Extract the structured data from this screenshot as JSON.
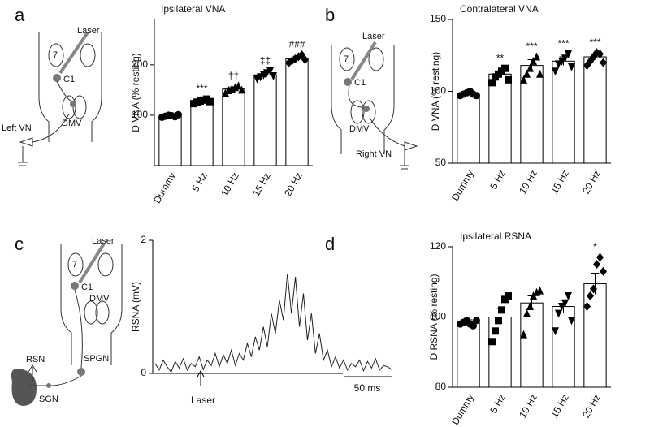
{
  "chart_data": [
    {
      "type": "bar",
      "panel_label": "a",
      "title": "Ipsilateral VNA",
      "ylabel": "D VNA (% resting)",
      "categories": [
        "Dummy",
        "5 Hz",
        "10 Hz",
        "15 Hz",
        "20 Hz"
      ],
      "values": [
        98,
        128,
        152,
        180,
        212
      ],
      "errors": [
        3,
        4,
        4,
        5,
        5
      ],
      "points": [
        [
          96,
          98,
          100,
          99,
          97,
          101
        ],
        [
          123,
          126,
          128,
          130,
          132,
          127
        ],
        [
          144,
          149,
          152,
          155,
          158,
          150
        ],
        [
          172,
          176,
          180,
          184,
          188,
          178
        ],
        [
          204,
          208,
          212,
          216,
          220,
          210
        ]
      ],
      "markers": [
        "circle",
        "square",
        "triangle-up",
        "triangle-down",
        "diamond"
      ],
      "significance": [
        null,
        "***",
        "††",
        "‡‡",
        "###"
      ],
      "ylim": [
        0,
        290
      ],
      "yticks": [
        100,
        200
      ],
      "diagram_labels": [
        "Laser",
        "7",
        "C1",
        "DMV",
        "Left VN"
      ]
    },
    {
      "type": "bar",
      "panel_label": "b",
      "title": "Contralateral VNA",
      "ylabel": "D VNA (% resting)",
      "categories": [
        "Dummy",
        "5 Hz",
        "10 Hz",
        "15 Hz",
        "20 Hz"
      ],
      "values": [
        98,
        112,
        118,
        121,
        124
      ],
      "errors": [
        1,
        2,
        4,
        3,
        2
      ],
      "points": [
        [
          97,
          98,
          99,
          100,
          98,
          97
        ],
        [
          106,
          110,
          112,
          114,
          116,
          108
        ],
        [
          108,
          112,
          116,
          121,
          124,
          112
        ],
        [
          114,
          119,
          121,
          123,
          126,
          117
        ],
        [
          118,
          121,
          124,
          127,
          126,
          120
        ]
      ],
      "markers": [
        "circle",
        "square",
        "triangle-up",
        "triangle-down",
        "diamond"
      ],
      "significance": [
        null,
        "**",
        "***",
        "***",
        "***"
      ],
      "ylim": [
        50,
        150
      ],
      "yticks": [
        50,
        100,
        150
      ],
      "diagram_labels": [
        "Laser",
        "7",
        "C1",
        "DMV",
        "Right VN"
      ]
    },
    {
      "type": "line",
      "panel_label": "c",
      "ylabel": "RSNA (mV)",
      "values": [
        0.15,
        0.05,
        0.2,
        0.1,
        0.02,
        0.18,
        0.08,
        0.22,
        0.05,
        0.15,
        0.1,
        0.25,
        0.06,
        0.2,
        0.12,
        0.3,
        0.1,
        0.28,
        0.15,
        0.35,
        0.12,
        0.3,
        0.2,
        0.45,
        0.25,
        0.55,
        0.35,
        0.7,
        0.4,
        0.9,
        0.6,
        1.1,
        0.8,
        1.5,
        0.9,
        1.45,
        0.7,
        1.2,
        0.5,
        0.9,
        0.3,
        0.6,
        0.2,
        0.35,
        0.1,
        0.25,
        0.08,
        0.2,
        0.05,
        0.15,
        0.1,
        0.2,
        0.04,
        0.18,
        0.08,
        0.22,
        0.05,
        0.12,
        0.1,
        0.06
      ],
      "ylim": [
        0,
        2
      ],
      "yticks": [
        0,
        2
      ],
      "scale_bar": "50 ms",
      "stimulus_label": "Laser",
      "diagram_labels": [
        "Laser",
        "7",
        "C1",
        "DMV",
        "SPGN",
        "SGN",
        "RSN"
      ]
    },
    {
      "type": "bar",
      "panel_label": "d",
      "title": "Ipsilateral RSNA",
      "ylabel": "D RSNA (% resting)",
      "categories": [
        "Dummy",
        "5 Hz",
        "10 Hz",
        "15 Hz",
        "20 Hz"
      ],
      "values": [
        98.5,
        100,
        104,
        103,
        109.5
      ],
      "errors": [
        0.7,
        2.5,
        2,
        1.8,
        3
      ],
      "points": [
        [
          98,
          98.5,
          99,
          98,
          97.5,
          99
        ],
        [
          93,
          96,
          99,
          102,
          105,
          106
        ],
        [
          95,
          101,
          103,
          106,
          107,
          107.5
        ],
        [
          96,
          101,
          103,
          104,
          106,
          99
        ],
        [
          103,
          106,
          108,
          115,
          117,
          113
        ]
      ],
      "markers": [
        "circle",
        "square",
        "triangle-up",
        "triangle-down",
        "diamond"
      ],
      "significance": [
        null,
        null,
        null,
        null,
        "*"
      ],
      "ylim": [
        80,
        120
      ],
      "yticks": [
        80,
        100,
        120
      ]
    }
  ]
}
